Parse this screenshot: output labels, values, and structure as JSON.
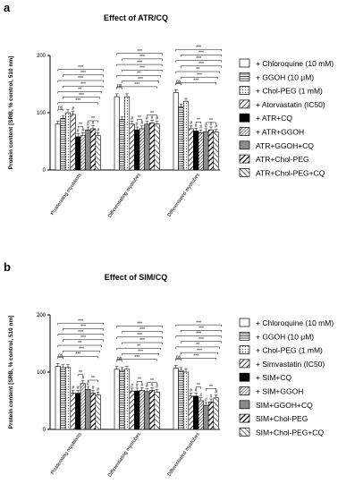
{
  "panel_a": {
    "letter": "a",
    "title": "Effect of ATR/CQ"
  },
  "panel_b": {
    "letter": "b",
    "title": "Effect of SIM/CQ"
  },
  "chart_data": [
    {
      "type": "bar",
      "title": "Effect of ATR/CQ",
      "ylabel": "Protein content [SRB, % control, 510 nm]",
      "ylim": [
        0,
        200
      ],
      "yticks": [
        "0",
        "100",
        "200"
      ],
      "categories": [
        "Proliferating myoblasts",
        "Differentiating myotubes",
        "Differentiated myotubes"
      ],
      "series": [
        {
          "name": "+ Chloroquine (10 mM)",
          "pattern": "white",
          "values": [
            80,
            128,
            135
          ]
        },
        {
          "name": "+ GGOH (10 μM)",
          "pattern": "hlines",
          "values": [
            90,
            88,
            110
          ]
        },
        {
          "name": "+ Chol-PEG (1 mM)",
          "pattern": "dots",
          "values": [
            100,
            128,
            120
          ]
        },
        {
          "name": "+ Atorvastatin (IC50)",
          "pattern": "diag",
          "values": [
            97,
            80,
            72
          ]
        },
        {
          "name": "+ ATR+CQ",
          "pattern": "black",
          "values": [
            58,
            70,
            68
          ]
        },
        {
          "name": "+ ATR+GGOH",
          "pattern": "diag-dense",
          "values": [
            60,
            72,
            65
          ]
        },
        {
          "name": "ATR+GGOH+CQ",
          "pattern": "gray",
          "values": [
            70,
            80,
            67
          ]
        },
        {
          "name": "ATR+Chol-PEG",
          "pattern": "diag-bold",
          "values": [
            72,
            82,
            70
          ]
        },
        {
          "name": "ATR+Chol-PEG+CQ",
          "pattern": "backdiag",
          "values": [
            60,
            80,
            66
          ]
        }
      ],
      "significance_labels": [
        "***",
        "**",
        "ns",
        "#"
      ],
      "grid": false,
      "legend_position": "right"
    },
    {
      "type": "bar",
      "title": "Effect of SIM/CQ",
      "ylabel": "Protein content [SRB, % control, 510 nm]",
      "ylim": [
        0,
        200
      ],
      "yticks": [
        "0",
        "100",
        "200"
      ],
      "categories": [
        "Proliferating myoblasts",
        "Differentiating myotubes",
        "Differentiated myotubes"
      ],
      "series": [
        {
          "name": "+ Chloroquine (10 mM)",
          "pattern": "white",
          "values": [
            110,
            105,
            107
          ]
        },
        {
          "name": "+ GGOH (10 μM)",
          "pattern": "hlines",
          "values": [
            108,
            103,
            103
          ]
        },
        {
          "name": "+ Chol-PEG (1 mM)",
          "pattern": "dots",
          "values": [
            108,
            105,
            100
          ]
        },
        {
          "name": "+ Simvastatin (IC50)",
          "pattern": "diag",
          "values": [
            63,
            67,
            58
          ]
        },
        {
          "name": "+ SIM+CQ",
          "pattern": "black",
          "values": [
            63,
            67,
            58
          ]
        },
        {
          "name": "+ SIM+GGOH",
          "pattern": "diag-dense",
          "values": [
            80,
            68,
            50
          ]
        },
        {
          "name": "SIM+GGOH+CQ",
          "pattern": "gray",
          "values": [
            70,
            66,
            42
          ]
        },
        {
          "name": "SIM+Chol-PEG",
          "pattern": "diag-bold",
          "values": [
            63,
            68,
            48
          ]
        },
        {
          "name": "SIM+Chol-PEG+CQ",
          "pattern": "backdiag",
          "values": [
            60,
            65,
            55
          ]
        }
      ],
      "significance_labels": [
        "***",
        "**",
        "ns",
        "#"
      ],
      "grid": false,
      "legend_position": "right"
    }
  ]
}
